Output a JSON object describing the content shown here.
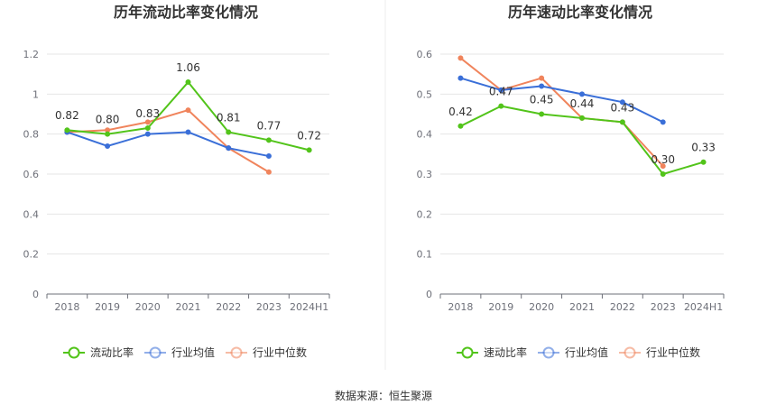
{
  "source_label": "数据来源：恒生聚源",
  "chart_data": [
    {
      "type": "line",
      "title": "历年流动比率变化情况",
      "categories": [
        "2018",
        "2019",
        "2020",
        "2021",
        "2022",
        "2023",
        "2024H1"
      ],
      "y_ticks": [
        "0",
        "0.2",
        "0.4",
        "0.6",
        "0.8",
        "1",
        "1.2"
      ],
      "ylim": [
        0,
        1.2
      ],
      "grid": true,
      "legend_position": "bottom",
      "label_series": 0,
      "series": [
        {
          "name": "流动比率",
          "color": "#52c41a",
          "values": [
            0.82,
            0.8,
            0.83,
            1.06,
            0.81,
            0.77,
            0.72
          ],
          "labels": [
            "0.82",
            "0.80",
            "0.83",
            "1.06",
            "0.81",
            "0.77",
            "0.72"
          ]
        },
        {
          "name": "行业均值",
          "color": "#3a6fd8",
          "values": [
            0.81,
            0.74,
            0.8,
            0.81,
            0.73,
            0.69,
            null
          ]
        },
        {
          "name": "行业中位数",
          "color": "#f0845c",
          "values": [
            0.81,
            0.82,
            0.86,
            0.92,
            0.73,
            0.61,
            null
          ]
        }
      ]
    },
    {
      "type": "line",
      "title": "历年速动比率变化情况",
      "categories": [
        "2018",
        "2019",
        "2020",
        "2021",
        "2022",
        "2023",
        "2024H1"
      ],
      "y_ticks": [
        "0",
        "0.1",
        "0.2",
        "0.3",
        "0.4",
        "0.5",
        "0.6"
      ],
      "ylim": [
        0,
        0.6
      ],
      "grid": true,
      "legend_position": "bottom",
      "label_series": 0,
      "series": [
        {
          "name": "速动比率",
          "color": "#52c41a",
          "values": [
            0.42,
            0.47,
            0.45,
            0.44,
            0.43,
            0.3,
            0.33
          ],
          "labels": [
            "0.42",
            "0.47",
            "0.45",
            "0.44",
            "0.43",
            "0.30",
            "0.33"
          ]
        },
        {
          "name": "行业均值",
          "color": "#3a6fd8",
          "values": [
            0.54,
            0.51,
            0.52,
            0.5,
            0.48,
            0.43,
            null
          ]
        },
        {
          "name": "行业中位数",
          "color": "#f0845c",
          "values": [
            0.59,
            0.51,
            0.54,
            0.44,
            0.43,
            0.32,
            null
          ]
        }
      ]
    }
  ]
}
